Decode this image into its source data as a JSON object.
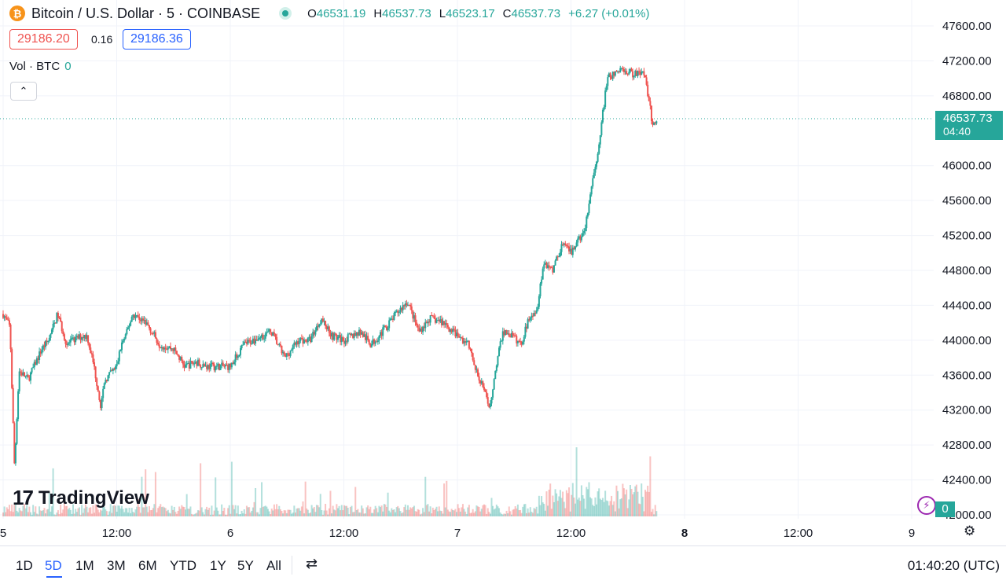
{
  "header": {
    "coin_symbol": "₿",
    "title": "Bitcoin / U.S. Dollar · 5 · COINBASE",
    "ohlc": [
      {
        "k": "O",
        "v": "46531.19"
      },
      {
        "k": "H",
        "v": "46537.73"
      },
      {
        "k": "L",
        "v": "46523.17"
      },
      {
        "k": "C",
        "v": "46537.73"
      }
    ],
    "change": "+6.27 (+0.01%)"
  },
  "trade": {
    "sell": "29186.20",
    "spread": "0.16",
    "buy": "29186.36"
  },
  "volume_legend": {
    "label": "Vol · BTC",
    "value": "0"
  },
  "collapse_glyph": "⌃",
  "price_tag": {
    "price": "46537.73",
    "countdown": "04:40"
  },
  "volume_tag": "0",
  "logo": {
    "mark": "17",
    "name": "TradingView"
  },
  "flash_glyph": "⚡",
  "settings_glyph": "⚙",
  "compare_glyph": "⇄",
  "bottom": {
    "ranges": [
      "1D",
      "5D",
      "1M",
      "3M",
      "6M",
      "YTD",
      "1Y",
      "5Y",
      "All"
    ],
    "active_range": "5D",
    "clock": "01:40:20 (UTC)"
  },
  "colors": {
    "up": "#26a69a",
    "down": "#ef5350",
    "accent": "#2962ff"
  },
  "chart_data": {
    "type": "candlestick",
    "interval": "5",
    "x_ticks": [
      "5",
      "12:00",
      "6",
      "12:00",
      "7",
      "12:00",
      "8",
      "12:00",
      "9"
    ],
    "bold_ticks": [
      "8"
    ],
    "y_ticks": [
      "42000.00",
      "42400.00",
      "42800.00",
      "43200.00",
      "43600.00",
      "44000.00",
      "44400.00",
      "44800.00",
      "45200.00",
      "45600.00",
      "46000.00",
      "46800.00",
      "47200.00",
      "47600.00"
    ],
    "ylim": [
      42000,
      47600
    ],
    "last_price": 46537.73,
    "grid": true,
    "path": [
      [
        0,
        44300
      ],
      [
        0.03,
        44150
      ],
      [
        0.05,
        42550
      ],
      [
        0.07,
        43650
      ],
      [
        0.11,
        43550
      ],
      [
        0.17,
        43900
      ],
      [
        0.2,
        44000
      ],
      [
        0.24,
        44300
      ],
      [
        0.28,
        43950
      ],
      [
        0.31,
        44000
      ],
      [
        0.35,
        44050
      ],
      [
        0.37,
        44050
      ],
      [
        0.4,
        43700
      ],
      [
        0.43,
        43250
      ],
      [
        0.45,
        43550
      ],
      [
        0.5,
        43700
      ],
      [
        0.52,
        43950
      ],
      [
        0.54,
        44050
      ],
      [
        0.57,
        44300
      ],
      [
        0.63,
        44200
      ],
      [
        0.69,
        43950
      ],
      [
        0.75,
        43900
      ],
      [
        0.8,
        43700
      ],
      [
        0.85,
        43750
      ],
      [
        0.9,
        43700
      ],
      [
        0.95,
        43700
      ],
      [
        1,
        43700
      ],
      [
        1.06,
        43950
      ],
      [
        1.1,
        44000
      ],
      [
        1.18,
        44100
      ],
      [
        1.24,
        43800
      ],
      [
        1.3,
        44000
      ],
      [
        1.35,
        44000
      ],
      [
        1.4,
        44250
      ],
      [
        1.45,
        44050
      ],
      [
        1.5,
        44000
      ],
      [
        1.57,
        44100
      ],
      [
        1.62,
        43950
      ],
      [
        1.67,
        44100
      ],
      [
        1.73,
        44300
      ],
      [
        1.78,
        44450
      ],
      [
        1.83,
        44100
      ],
      [
        1.88,
        44250
      ],
      [
        1.94,
        44200
      ],
      [
        2,
        44050
      ],
      [
        2.05,
        43950
      ],
      [
        2.08,
        43650
      ],
      [
        2.11,
        43500
      ],
      [
        2.14,
        43200
      ],
      [
        2.17,
        43700
      ],
      [
        2.2,
        44100
      ],
      [
        2.24,
        44050
      ],
      [
        2.28,
        43950
      ],
      [
        2.32,
        44300
      ],
      [
        2.35,
        44350
      ],
      [
        2.38,
        44900
      ],
      [
        2.42,
        44800
      ],
      [
        2.46,
        45100
      ],
      [
        2.5,
        45000
      ],
      [
        2.56,
        45250
      ],
      [
        2.62,
        46200
      ],
      [
        2.66,
        47000
      ],
      [
        2.72,
        47100
      ],
      [
        2.78,
        47050
      ],
      [
        2.82,
        47100
      ],
      [
        2.84,
        46800
      ],
      [
        2.86,
        46450
      ],
      [
        2.88,
        46537.73
      ]
    ]
  }
}
